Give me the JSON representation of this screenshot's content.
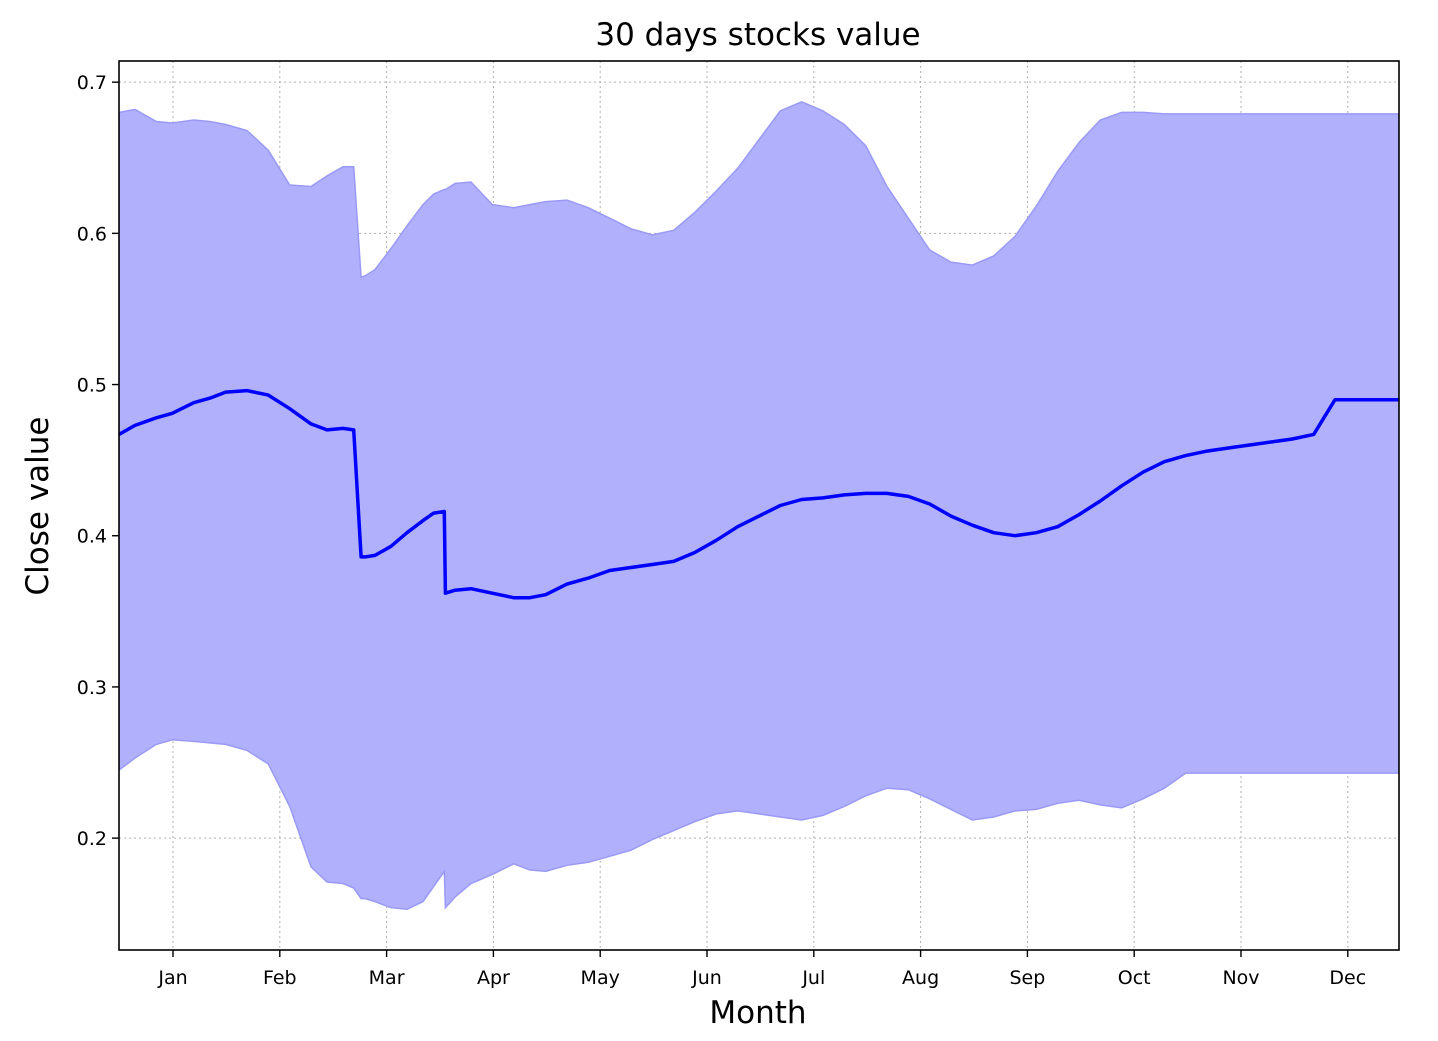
{
  "chart_data": {
    "type": "area",
    "title": "30 days stocks value",
    "xlabel": "Month",
    "ylabel": "Close value",
    "x_ticks": [
      "Jan",
      "Feb",
      "Mar",
      "Apr",
      "May",
      "Jun",
      "Jul",
      "Aug",
      "Sep",
      "Oct",
      "Nov",
      "Dec"
    ],
    "y_ticks": [
      "0.2",
      "0.3",
      "0.4",
      "0.5",
      "0.6",
      "0.7"
    ],
    "ylim": [
      0.126,
      0.714
    ],
    "xlim": [
      0,
      12
    ],
    "grid": true,
    "colors": {
      "line": "#0000ff",
      "band": "#b0b0fc",
      "band_edge": "#9a9af6",
      "grid": "#b0b0b0"
    },
    "series": [
      {
        "role": "mean",
        "x": [
          0,
          0.15,
          0.35,
          0.5,
          0.7,
          0.85,
          1.0,
          1.2,
          1.4,
          1.6,
          1.8,
          1.95,
          2.1,
          2.2,
          2.27,
          2.31,
          2.4,
          2.55,
          2.7,
          2.85,
          2.95,
          3.05,
          3.06,
          3.15,
          3.3,
          3.5,
          3.7,
          3.85,
          4.0,
          4.2,
          4.4,
          4.6,
          4.8,
          5.0,
          5.2,
          5.4,
          5.6,
          5.8,
          6.0,
          6.2,
          6.4,
          6.6,
          6.8,
          7.0,
          7.2,
          7.4,
          7.6,
          7.8,
          8.0,
          8.2,
          8.4,
          8.6,
          8.8,
          9.0,
          9.2,
          9.4,
          9.6,
          9.8,
          10.0,
          10.2,
          10.4,
          10.6,
          10.8,
          11.0,
          11.2,
          11.4,
          11.6,
          11.8,
          12.0
        ],
        "y": [
          0.467,
          0.473,
          0.478,
          0.481,
          0.488,
          0.491,
          0.495,
          0.496,
          0.493,
          0.484,
          0.474,
          0.47,
          0.471,
          0.47,
          0.386,
          0.386,
          0.387,
          0.393,
          0.402,
          0.41,
          0.415,
          0.416,
          0.362,
          0.364,
          0.365,
          0.362,
          0.359,
          0.359,
          0.361,
          0.368,
          0.372,
          0.377,
          0.379,
          0.381,
          0.383,
          0.389,
          0.397,
          0.406,
          0.413,
          0.42,
          0.424,
          0.425,
          0.427,
          0.428,
          0.428,
          0.426,
          0.421,
          0.413,
          0.407,
          0.402,
          0.4,
          0.402,
          0.406,
          0.414,
          0.423,
          0.433,
          0.442,
          0.449,
          0.453,
          0.456,
          0.458,
          0.46,
          0.462,
          0.464,
          0.467,
          0.49,
          0.49,
          0.49,
          0.49
        ]
      },
      {
        "role": "upper",
        "x": [
          0,
          0.15,
          0.35,
          0.5,
          0.7,
          0.85,
          1.0,
          1.2,
          1.4,
          1.6,
          1.8,
          1.95,
          2.1,
          2.2,
          2.27,
          2.31,
          2.4,
          2.55,
          2.7,
          2.85,
          2.95,
          3.05,
          3.06,
          3.15,
          3.3,
          3.5,
          3.7,
          3.85,
          4.0,
          4.2,
          4.4,
          4.6,
          4.8,
          5.0,
          5.2,
          5.4,
          5.6,
          5.8,
          6.0,
          6.2,
          6.4,
          6.6,
          6.8,
          7.0,
          7.2,
          7.4,
          7.6,
          7.8,
          8.0,
          8.2,
          8.4,
          8.6,
          8.8,
          9.0,
          9.2,
          9.4,
          9.6,
          9.8,
          10.0,
          10.2,
          10.4,
          10.6,
          10.8,
          11.0,
          11.2,
          11.4,
          11.6,
          11.8,
          12.0
        ],
        "y": [
          0.68,
          0.682,
          0.674,
          0.673,
          0.675,
          0.674,
          0.672,
          0.668,
          0.655,
          0.632,
          0.631,
          0.638,
          0.644,
          0.644,
          0.571,
          0.572,
          0.576,
          0.59,
          0.605,
          0.619,
          0.626,
          0.629,
          0.629,
          0.633,
          0.634,
          0.619,
          0.617,
          0.619,
          0.621,
          0.622,
          0.617,
          0.61,
          0.603,
          0.599,
          0.602,
          0.614,
          0.628,
          0.643,
          0.662,
          0.681,
          0.687,
          0.681,
          0.672,
          0.658,
          0.631,
          0.61,
          0.589,
          0.581,
          0.579,
          0.585,
          0.598,
          0.618,
          0.641,
          0.66,
          0.675,
          0.68,
          0.68,
          0.679,
          0.679,
          0.679,
          0.679,
          0.679,
          0.679,
          0.679,
          0.679,
          0.679,
          0.679,
          0.679,
          0.679
        ]
      },
      {
        "role": "lower",
        "x": [
          0,
          0.15,
          0.35,
          0.5,
          0.7,
          0.85,
          1.0,
          1.2,
          1.4,
          1.6,
          1.8,
          1.95,
          2.1,
          2.2,
          2.27,
          2.31,
          2.4,
          2.55,
          2.7,
          2.85,
          2.95,
          3.05,
          3.06,
          3.15,
          3.3,
          3.5,
          3.7,
          3.85,
          4.0,
          4.2,
          4.4,
          4.6,
          4.8,
          5.0,
          5.2,
          5.4,
          5.6,
          5.8,
          6.0,
          6.2,
          6.4,
          6.6,
          6.8,
          7.0,
          7.2,
          7.4,
          7.6,
          7.8,
          8.0,
          8.2,
          8.4,
          8.6,
          8.8,
          9.0,
          9.2,
          9.4,
          9.6,
          9.8,
          10.0,
          10.2,
          10.4,
          10.6,
          10.8,
          11.0,
          11.2,
          11.4,
          11.6,
          11.8,
          12.0
        ],
        "y": [
          0.245,
          0.253,
          0.262,
          0.265,
          0.264,
          0.263,
          0.262,
          0.258,
          0.249,
          0.221,
          0.181,
          0.171,
          0.17,
          0.167,
          0.16,
          0.16,
          0.158,
          0.154,
          0.153,
          0.158,
          0.168,
          0.178,
          0.154,
          0.161,
          0.17,
          0.176,
          0.183,
          0.179,
          0.178,
          0.182,
          0.184,
          0.188,
          0.192,
          0.199,
          0.205,
          0.211,
          0.216,
          0.218,
          0.216,
          0.214,
          0.212,
          0.215,
          0.221,
          0.228,
          0.233,
          0.232,
          0.226,
          0.219,
          0.212,
          0.214,
          0.218,
          0.219,
          0.223,
          0.225,
          0.222,
          0.22,
          0.226,
          0.233,
          0.243,
          0.243,
          0.243,
          0.243,
          0.243,
          0.243,
          0.243,
          0.243,
          0.243,
          0.243,
          0.243
        ]
      }
    ]
  }
}
